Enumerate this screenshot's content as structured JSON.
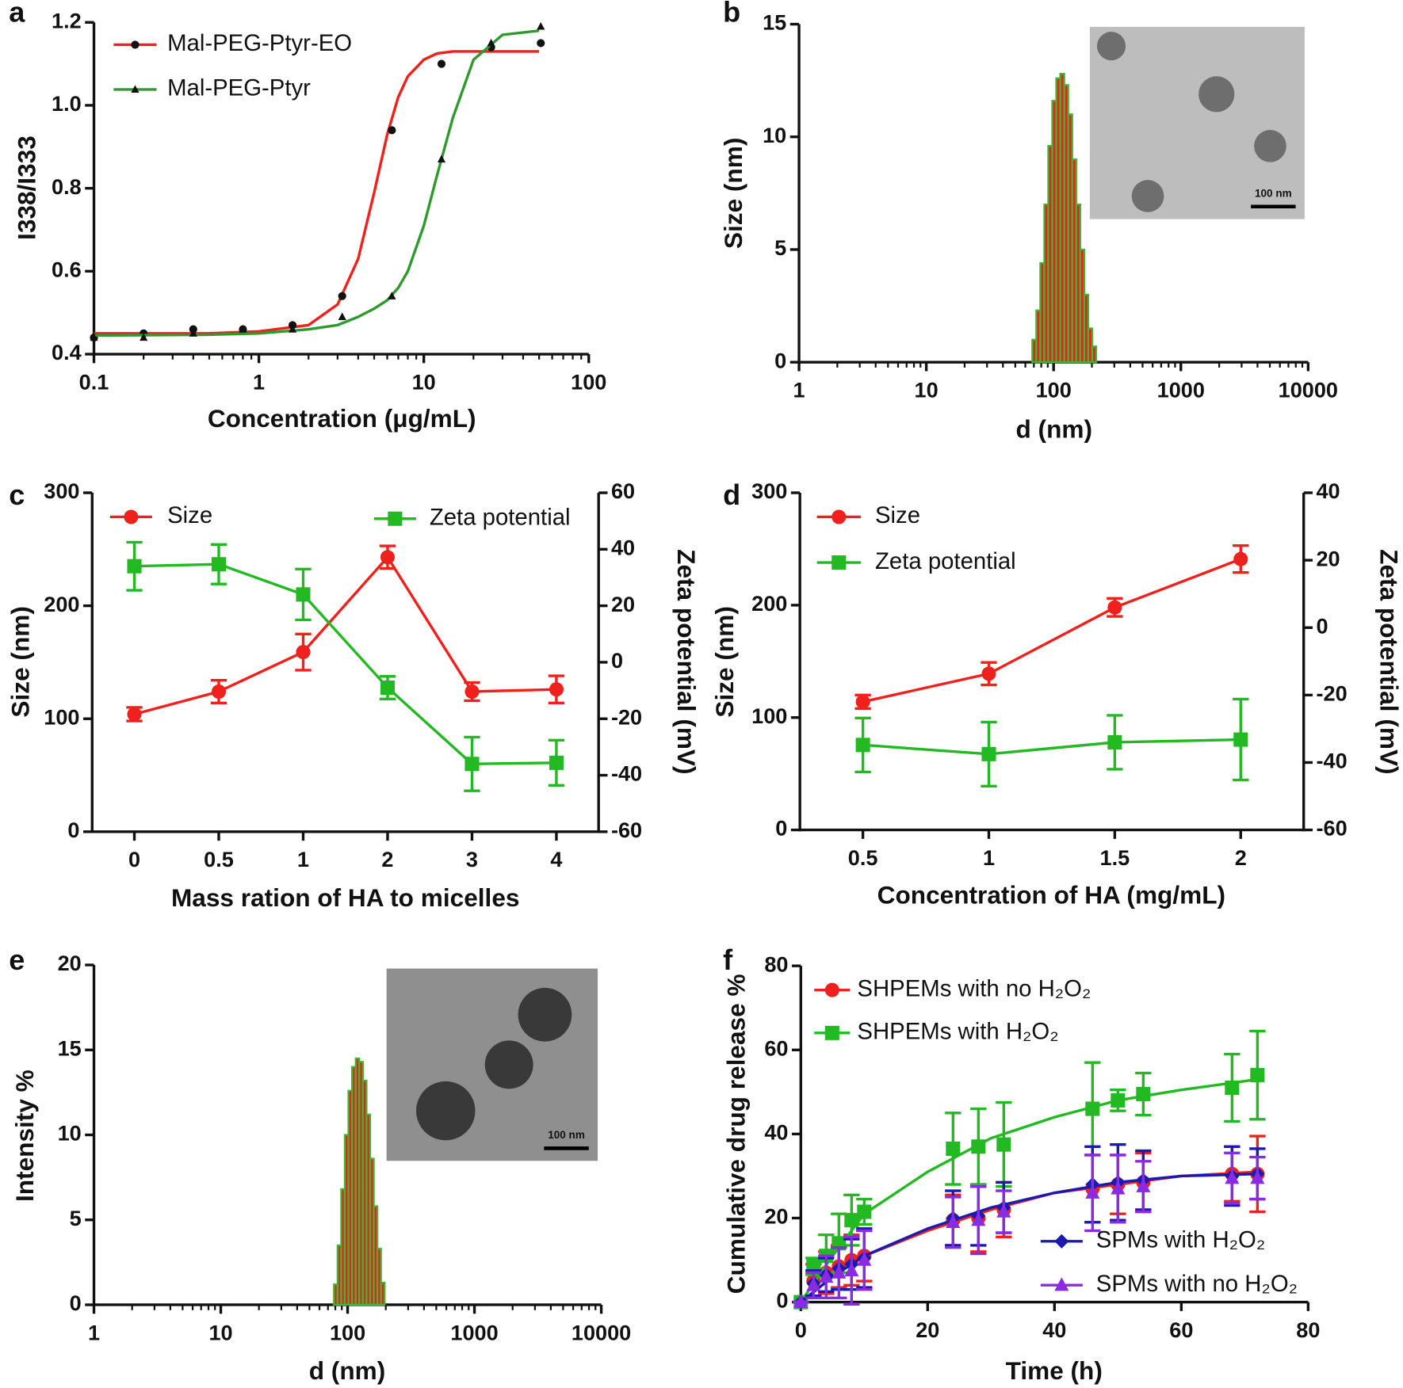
{
  "chart_data": [
    {
      "panel": "a",
      "type": "line",
      "xscale": "log",
      "x": [
        0.1,
        0.2,
        0.4,
        0.8,
        1.6,
        3.2,
        6.4,
        12.8,
        25.6,
        51.2
      ],
      "xlim": [
        0.1,
        100
      ],
      "xticks": [
        0.1,
        1,
        10,
        100
      ],
      "ylim": [
        0.4,
        1.2
      ],
      "yticks": [
        0.4,
        0.6,
        0.8,
        {
          "value": 1,
          "label": "1.0"
        },
        1.2
      ],
      "xlabel": "Concentration (μg/mL)",
      "ylabel": "I338/I333",
      "fit_x": [
        0.1,
        0.5,
        1,
        2,
        3,
        4,
        5,
        6,
        7,
        8,
        10,
        12,
        15,
        20,
        30,
        50
      ],
      "series": [
        {
          "name": "Mal-PEG-Ptyr-EO",
          "color": "#f0201c",
          "marker": "circle",
          "marker_color": "#111111",
          "values": [
            0.44,
            0.45,
            0.46,
            0.46,
            0.47,
            0.54,
            0.94,
            1.1,
            1.14,
            1.15
          ],
          "fit_values": [
            0.45,
            0.45,
            0.455,
            0.47,
            0.52,
            0.63,
            0.79,
            0.93,
            1.02,
            1.07,
            1.11,
            1.125,
            1.13,
            1.13,
            1.13,
            1.13
          ]
        },
        {
          "name": "Mal-PEG-Ptyr",
          "color": "#2e9a2e",
          "marker": "triangle",
          "marker_color": "#111111",
          "values": [
            0.44,
            0.44,
            0.45,
            0.46,
            0.46,
            0.49,
            0.54,
            0.87,
            1.15,
            1.19
          ],
          "fit_values": [
            0.445,
            0.447,
            0.45,
            0.46,
            0.47,
            0.49,
            0.51,
            0.53,
            0.56,
            0.6,
            0.71,
            0.83,
            0.97,
            1.11,
            1.17,
            1.18
          ]
        }
      ]
    },
    {
      "panel": "b",
      "type": "histogram",
      "xscale": "log",
      "bins": [
        68,
        73.1,
        78.6,
        84.5,
        90.8,
        97.6,
        104.9,
        112.8,
        121.3,
        130.4,
        140.2,
        150.7,
        162,
        174.1,
        187.2,
        201.2,
        216.3
      ],
      "values": [
        1,
        2.3,
        4.4,
        7,
        9.6,
        11.6,
        12.6,
        12.8,
        12.3,
        11,
        9,
        7,
        5,
        3,
        1.5,
        0.7
      ],
      "color": "#e8231f",
      "edge_color": "#3cb832",
      "xlim": [
        1,
        10000
      ],
      "xticks": [
        1,
        10,
        100,
        1000,
        10000
      ],
      "ylim": [
        0,
        15
      ],
      "yticks": [
        0,
        5,
        10,
        15
      ],
      "xlabel": "d (nm)",
      "ylabel": "Size (nm)",
      "inset_label": "100 nm"
    },
    {
      "panel": "c",
      "type": "line",
      "categories": [
        "0",
        "0.5",
        "1",
        "2",
        "3",
        "4"
      ],
      "ylim": [
        0,
        300
      ],
      "yticks": [
        0,
        100,
        200,
        300
      ],
      "y2lim": [
        -60,
        60
      ],
      "y2ticks": [
        -60,
        -40,
        -20,
        0,
        20,
        40,
        60
      ],
      "xlabel": "Mass ration of HA to micelles",
      "ylabel": "Size (nm)",
      "y2label": "Zeta potential (mV)",
      "series": [
        {
          "name": "Size",
          "color": "#f0201c",
          "marker": "circle",
          "values": [
            104,
            124,
            159,
            243,
            124,
            126
          ],
          "errors": [
            6,
            10,
            16,
            10,
            8,
            12
          ]
        },
        {
          "name": "Zeta potential",
          "color": "#22b922",
          "marker": "square",
          "axis": "y2",
          "values": [
            34,
            34.7,
            24,
            -9,
            -36,
            -35.6
          ],
          "errors": [
            8.5,
            7,
            9,
            4,
            9.5,
            8
          ]
        }
      ]
    },
    {
      "panel": "d",
      "type": "line",
      "categories": [
        "0.5",
        "1",
        "1.5",
        "2"
      ],
      "ylim": [
        0,
        300
      ],
      "yticks": [
        0,
        100,
        200,
        300
      ],
      "y2lim": [
        -60,
        40
      ],
      "y2ticks": [
        -60,
        -40,
        -20,
        0,
        20,
        40
      ],
      "xlabel": "Concentration of HA (mg/mL)",
      "ylabel": "Size (nm)",
      "y2label": "Zeta potential (mV)",
      "series": [
        {
          "name": "Size",
          "color": "#f0201c",
          "marker": "circle",
          "values": [
            114,
            139,
            198,
            241
          ],
          "errors": [
            6,
            10,
            8,
            12
          ]
        },
        {
          "name": "Zeta potential",
          "color": "#22b922",
          "marker": "square",
          "axis": "y2",
          "values": [
            -34.8,
            -37.5,
            -34,
            -33.2
          ],
          "errors": [
            8,
            9.5,
            8,
            12
          ]
        }
      ]
    },
    {
      "panel": "e",
      "type": "histogram",
      "xscale": "log",
      "bins": [
        78,
        83.3,
        89,
        95,
        101.5,
        108.4,
        115.8,
        123.6,
        132,
        141,
        150.6,
        160.8,
        171.7,
        183.4,
        195.9
      ],
      "values": [
        1.2,
        3.5,
        6.8,
        10,
        12.6,
        14,
        14.5,
        14.3,
        13.2,
        11.2,
        8.6,
        5.8,
        3.3,
        1.3
      ],
      "color": "#e8231f",
      "edge_color": "#3cb832",
      "xlim": [
        1,
        10000
      ],
      "xticks": [
        1,
        10,
        100,
        1000,
        10000
      ],
      "ylim": [
        0,
        20
      ],
      "yticks": [
        0,
        5,
        10,
        15,
        20
      ],
      "xlabel": "d (nm)",
      "ylabel": "Intensity %",
      "inset_label": "100 nm"
    },
    {
      "panel": "f",
      "type": "line",
      "x": [
        0,
        2,
        4,
        6,
        8,
        10,
        24,
        28,
        32,
        46,
        50,
        54,
        68,
        72
      ],
      "xlim": [
        0,
        80
      ],
      "xticks": [
        0,
        20,
        40,
        60,
        80
      ],
      "ylim": [
        0,
        80
      ],
      "yticks": [
        0,
        20,
        40,
        60,
        80
      ],
      "xlabel": "Time (h)",
      "ylabel": "Cumulative drug release %",
      "fit_x": [
        0,
        5,
        10,
        20,
        30,
        40,
        50,
        60,
        72
      ],
      "series": [
        {
          "name": "SHPEMs with no H₂O₂",
          "color": "#f0201c",
          "marker": "circle",
          "values": [
            0,
            5,
            7,
            8.5,
            10,
            11,
            19.5,
            20,
            22,
            27,
            28,
            28.5,
            30.5,
            30.5
          ],
          "errors": [
            0,
            4,
            5,
            5,
            6,
            6,
            6,
            8,
            6.5,
            8,
            7,
            7,
            6.5,
            9
          ],
          "fit_values": [
            0,
            6,
            11,
            17,
            22,
            26,
            28,
            30,
            31
          ]
        },
        {
          "name": "SHPEMs with H₂O₂",
          "color": "#22b922",
          "marker": "square",
          "values": [
            0,
            8.5,
            11,
            14,
            19.5,
            21.5,
            36.5,
            37,
            37.5,
            46,
            48,
            49.5,
            51,
            54
          ],
          "errors": [
            0,
            2,
            5,
            7,
            6,
            3,
            8.5,
            9,
            10,
            11,
            2.5,
            5,
            8,
            10.5
          ],
          "fit_values": [
            0,
            11,
            21,
            31,
            39,
            44,
            48,
            50.5,
            53
          ]
        },
        {
          "name": "SPMs with H₂O₂",
          "color": "#1a1ab0",
          "marker": "diamond",
          "values": [
            0,
            4.5,
            6.5,
            8,
            9,
            10.5,
            20,
            20.5,
            22.5,
            28,
            28.5,
            29,
            30,
            30.5
          ],
          "errors": [
            0,
            3,
            4,
            5,
            6,
            7,
            6.5,
            7,
            6,
            9,
            9,
            7,
            7,
            6
          ],
          "fit_values": [
            0,
            6,
            11,
            17.5,
            22.5,
            26,
            28.5,
            30,
            30.5
          ]
        },
        {
          "name": "SPMs with no H₂O₂",
          "color": "#8a2be2",
          "marker": "triangle",
          "values": [
            0,
            4,
            6,
            7,
            7.5,
            10,
            19,
            19.5,
            21.5,
            26,
            27,
            27.5,
            29.5,
            29.5
          ],
          "errors": [
            0,
            3,
            5,
            6,
            8,
            7,
            6,
            8,
            5,
            9,
            8,
            6,
            6,
            5
          ]
        }
      ]
    }
  ]
}
